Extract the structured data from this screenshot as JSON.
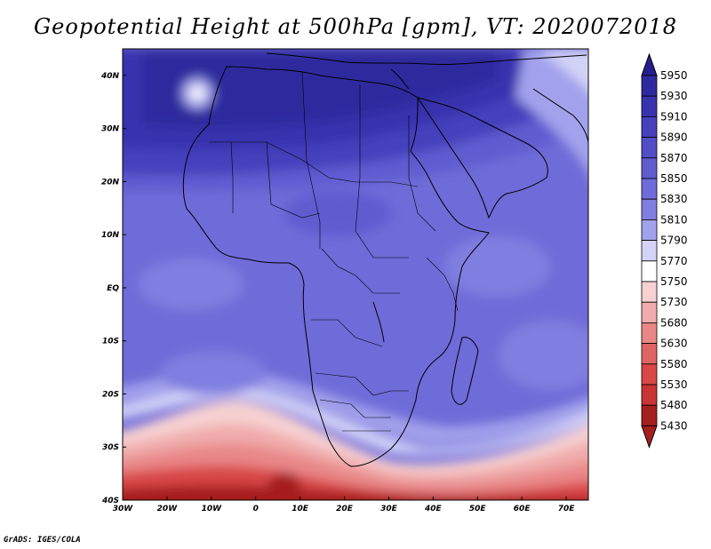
{
  "title": "Geopotential Height at 500hPa [gpm], VT: 2020072018",
  "credit": "GrADS: IGES/COLA",
  "map": {
    "projection": "latlon",
    "lon_range": [
      -30,
      75
    ],
    "lat_range": [
      -40,
      45
    ],
    "lon_ticks": [
      "30W",
      "20W",
      "10W",
      "0",
      "10E",
      "20E",
      "30E",
      "40E",
      "50E",
      "60E",
      "70E"
    ],
    "lat_ticks": [
      "40S",
      "30S",
      "20S",
      "10S",
      "EQ",
      "10N",
      "20N",
      "30N",
      "40N"
    ]
  },
  "colorbar": {
    "levels": [
      "5950",
      "5930",
      "5910",
      "5890",
      "5870",
      "5850",
      "5830",
      "5810",
      "5790",
      "5770",
      "5750",
      "5730",
      "5680",
      "5630",
      "5580",
      "5530",
      "5480",
      "5430"
    ],
    "colors": [
      "#241f8f",
      "#2e2a9e",
      "#3833ae",
      "#4540bb",
      "#524ec6",
      "#605cd0",
      "#6f6bd8",
      "#807ee0",
      "#a2a2ec",
      "#d3d3f7",
      "#ffffff",
      "#f7d1d1",
      "#f0acac",
      "#e98787",
      "#e06464",
      "#d94747",
      "#c93434",
      "#a61f1f"
    ]
  }
}
